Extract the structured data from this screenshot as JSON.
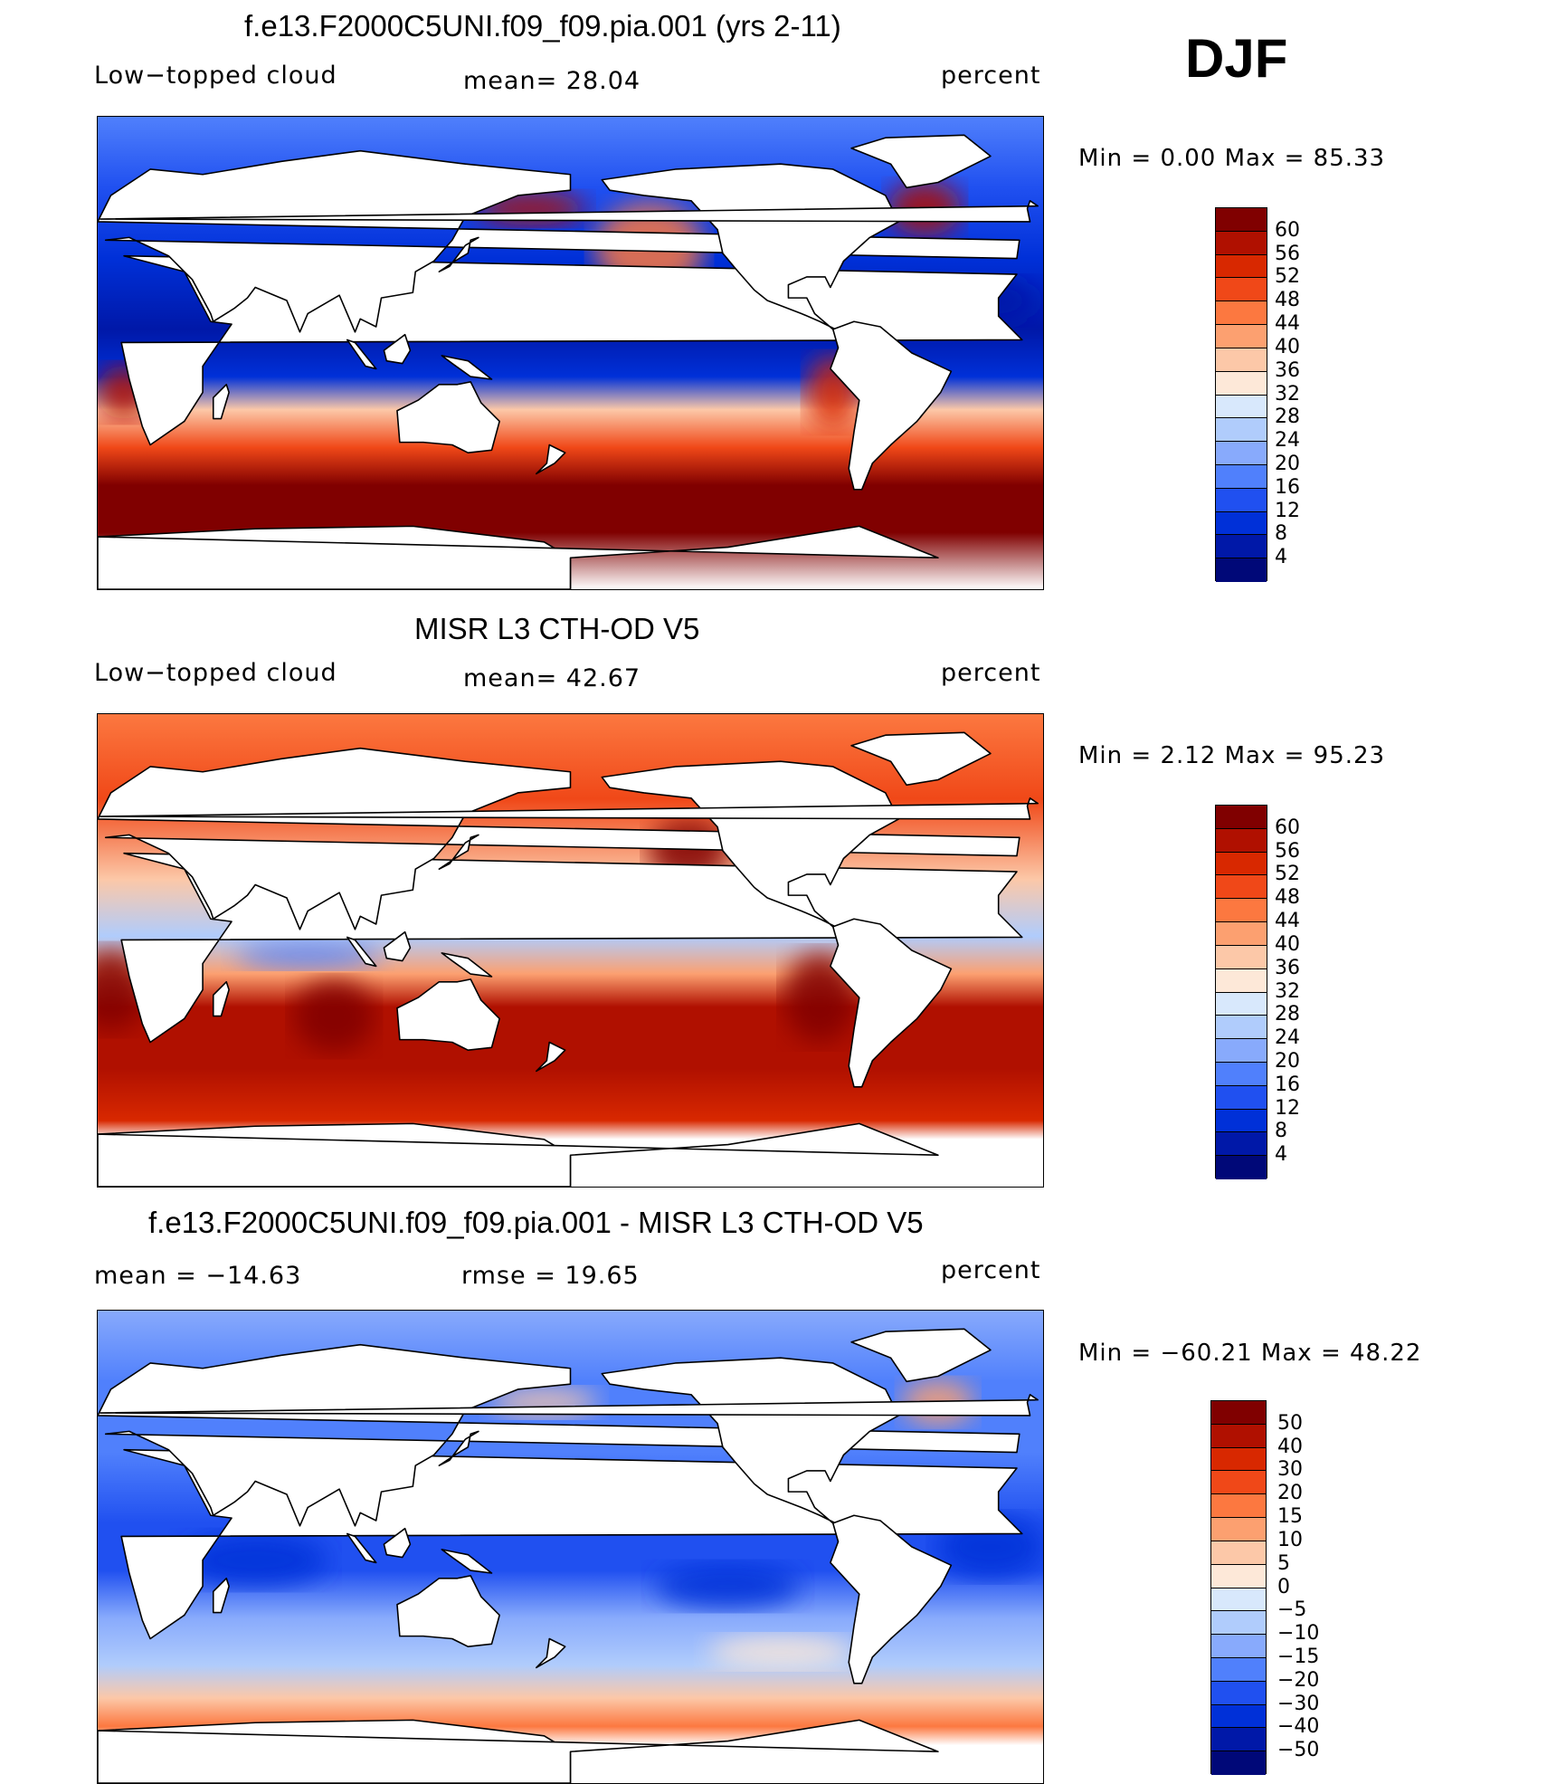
{
  "season": "DJF",
  "colors": {
    "model_scale": [
      "#800000",
      "#b01000",
      "#d82800",
      "#f04818",
      "#fc7840",
      "#fca070",
      "#fcc8a8",
      "#fde8d8",
      "#d8e8fc",
      "#b0ccfc",
      "#88aafc",
      "#5080fc",
      "#2050f0",
      "#0030d8",
      "#0018a8",
      "#000878"
    ],
    "diff_scale": [
      "#800000",
      "#b01000",
      "#d82800",
      "#f04818",
      "#fc7840",
      "#fca070",
      "#fcc8a8",
      "#fde8d8",
      "#d8e8fc",
      "#b0ccfc",
      "#88aafc",
      "#5080fc",
      "#2050f0",
      "#0030d8",
      "#0018a8",
      "#000878"
    ]
  },
  "chart_data": [
    {
      "type": "heatmap",
      "title": "f.e13.F2000C5UNI.f09_f09.pia.001 (yrs 2-11)",
      "left_label": "Low−topped cloud",
      "mean_label": "mean=   28.04",
      "units": "percent",
      "mean": 28.04,
      "min_label": "Min  =     0.00  Max  =    85.33",
      "min": 0.0,
      "max": 85.33,
      "levels": [
        "60",
        "56",
        "52",
        "48",
        "44",
        "40",
        "36",
        "32",
        "28",
        "24",
        "20",
        "16",
        "12",
        "8",
        "4"
      ]
    },
    {
      "type": "heatmap",
      "title": "MISR L3 CTH-OD V5",
      "left_label": "Low−topped cloud",
      "mean_label": "mean=   42.67",
      "units": "percent",
      "mean": 42.67,
      "min_label": "Min  =     2.12  Max  =    95.23",
      "min": 2.12,
      "max": 95.23,
      "levels": [
        "60",
        "56",
        "52",
        "48",
        "44",
        "40",
        "36",
        "32",
        "28",
        "24",
        "20",
        "16",
        "12",
        "8",
        "4"
      ]
    },
    {
      "type": "heatmap",
      "title": "f.e13.F2000C5UNI.f09_f09.pia.001 - MISR L3 CTH-OD V5",
      "left_label": "mean  =  −14.63",
      "mean_label": "rmse  =    19.65",
      "units": "percent",
      "mean": -14.63,
      "rmse": 19.65,
      "min_label": "Min  =  −60.21  Max  =    48.22",
      "min": -60.21,
      "max": 48.22,
      "levels": [
        "50",
        "40",
        "30",
        "20",
        "15",
        "10",
        "5",
        "0",
        "−5",
        "−10",
        "−15",
        "−20",
        "−30",
        "−40",
        "−50"
      ]
    }
  ]
}
